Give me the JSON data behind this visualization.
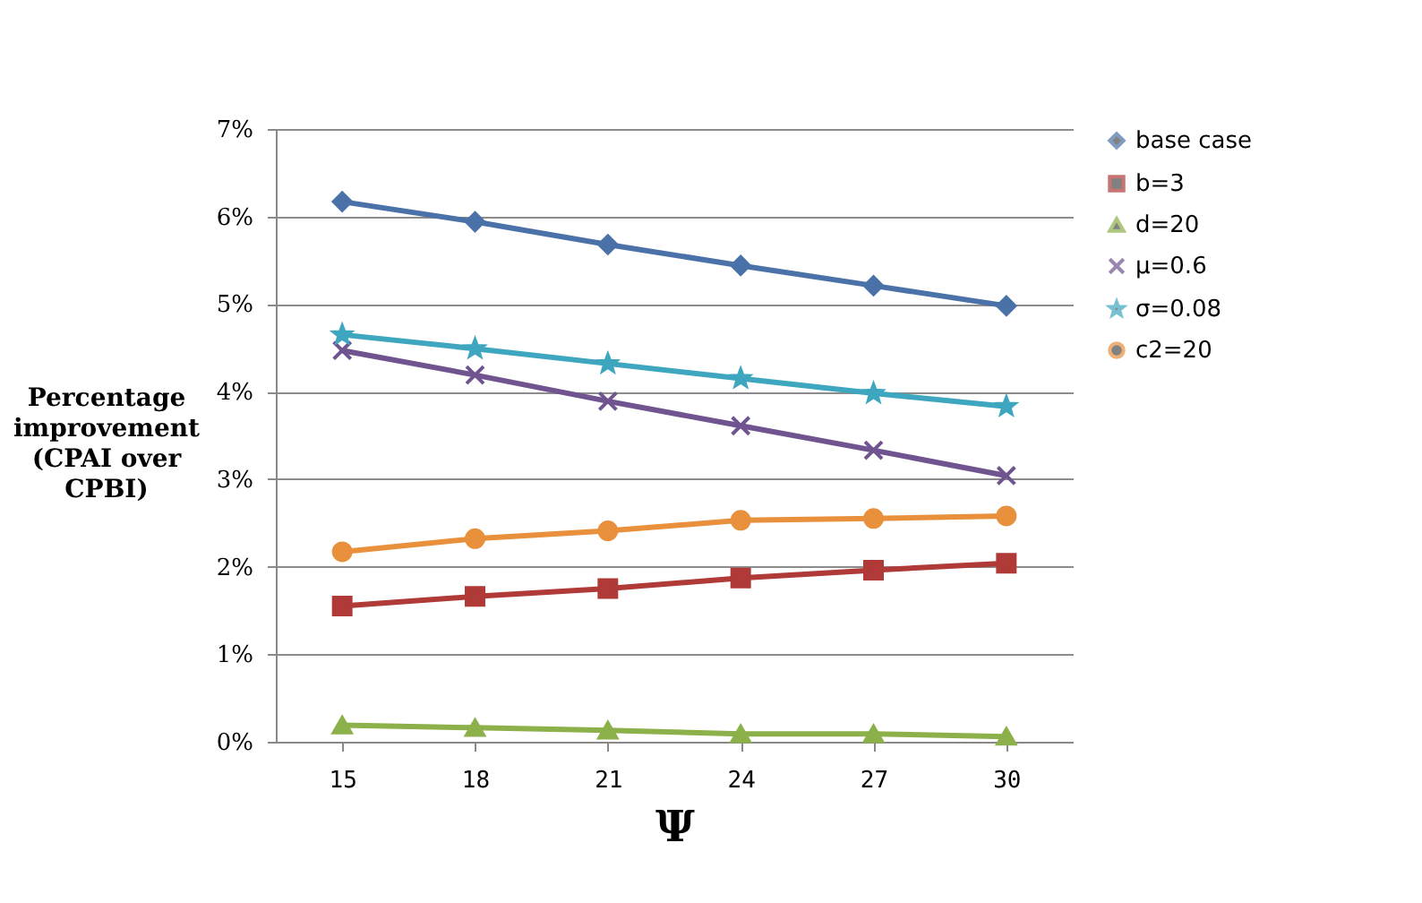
{
  "chart_data": {
    "type": "line",
    "xlabel": "Ψ",
    "ylabel": "Percentage improvement (CPAI over CPBI)",
    "categories": [
      "15",
      "18",
      "21",
      "24",
      "27",
      "30"
    ],
    "series": [
      {
        "name": "base case",
        "color": "#4a72a8",
        "marker": "diamond",
        "values": [
          6.17,
          5.94,
          5.68,
          5.44,
          5.21,
          4.98
        ]
      },
      {
        "name": "b=3",
        "color": "#b03a37",
        "marker": "square",
        "values": [
          1.55,
          1.66,
          1.75,
          1.87,
          1.96,
          2.04
        ]
      },
      {
        "name": "d=20",
        "color": "#8cb04a",
        "marker": "triangle",
        "values": [
          0.19,
          0.16,
          0.13,
          0.09,
          0.09,
          0.06
        ]
      },
      {
        "name": "μ=0.6",
        "color": "#705490",
        "marker": "cross",
        "values": [
          4.47,
          4.19,
          3.89,
          3.61,
          3.33,
          3.04
        ]
      },
      {
        "name": "σ=0.08",
        "color": "#3ea6bf",
        "marker": "star",
        "values": [
          4.65,
          4.49,
          4.32,
          4.15,
          3.98,
          3.83
        ]
      },
      {
        "name": "c2=20",
        "color": "#e8903c",
        "marker": "circle",
        "values": [
          2.17,
          2.32,
          2.41,
          2.53,
          2.55,
          2.58
        ]
      }
    ],
    "ylim": [
      0,
      7
    ],
    "yticks": [
      {
        "value": 0,
        "label": "0%"
      },
      {
        "value": 1,
        "label": "1%"
      },
      {
        "value": 2,
        "label": "2%"
      },
      {
        "value": 3,
        "label": "3%"
      },
      {
        "value": 4,
        "label": "4%"
      },
      {
        "value": 5,
        "label": "5%"
      },
      {
        "value": 6,
        "label": "6%"
      },
      {
        "value": 7,
        "label": "7%"
      }
    ],
    "grid": "y",
    "legend": "right",
    "line_style": "solid"
  }
}
